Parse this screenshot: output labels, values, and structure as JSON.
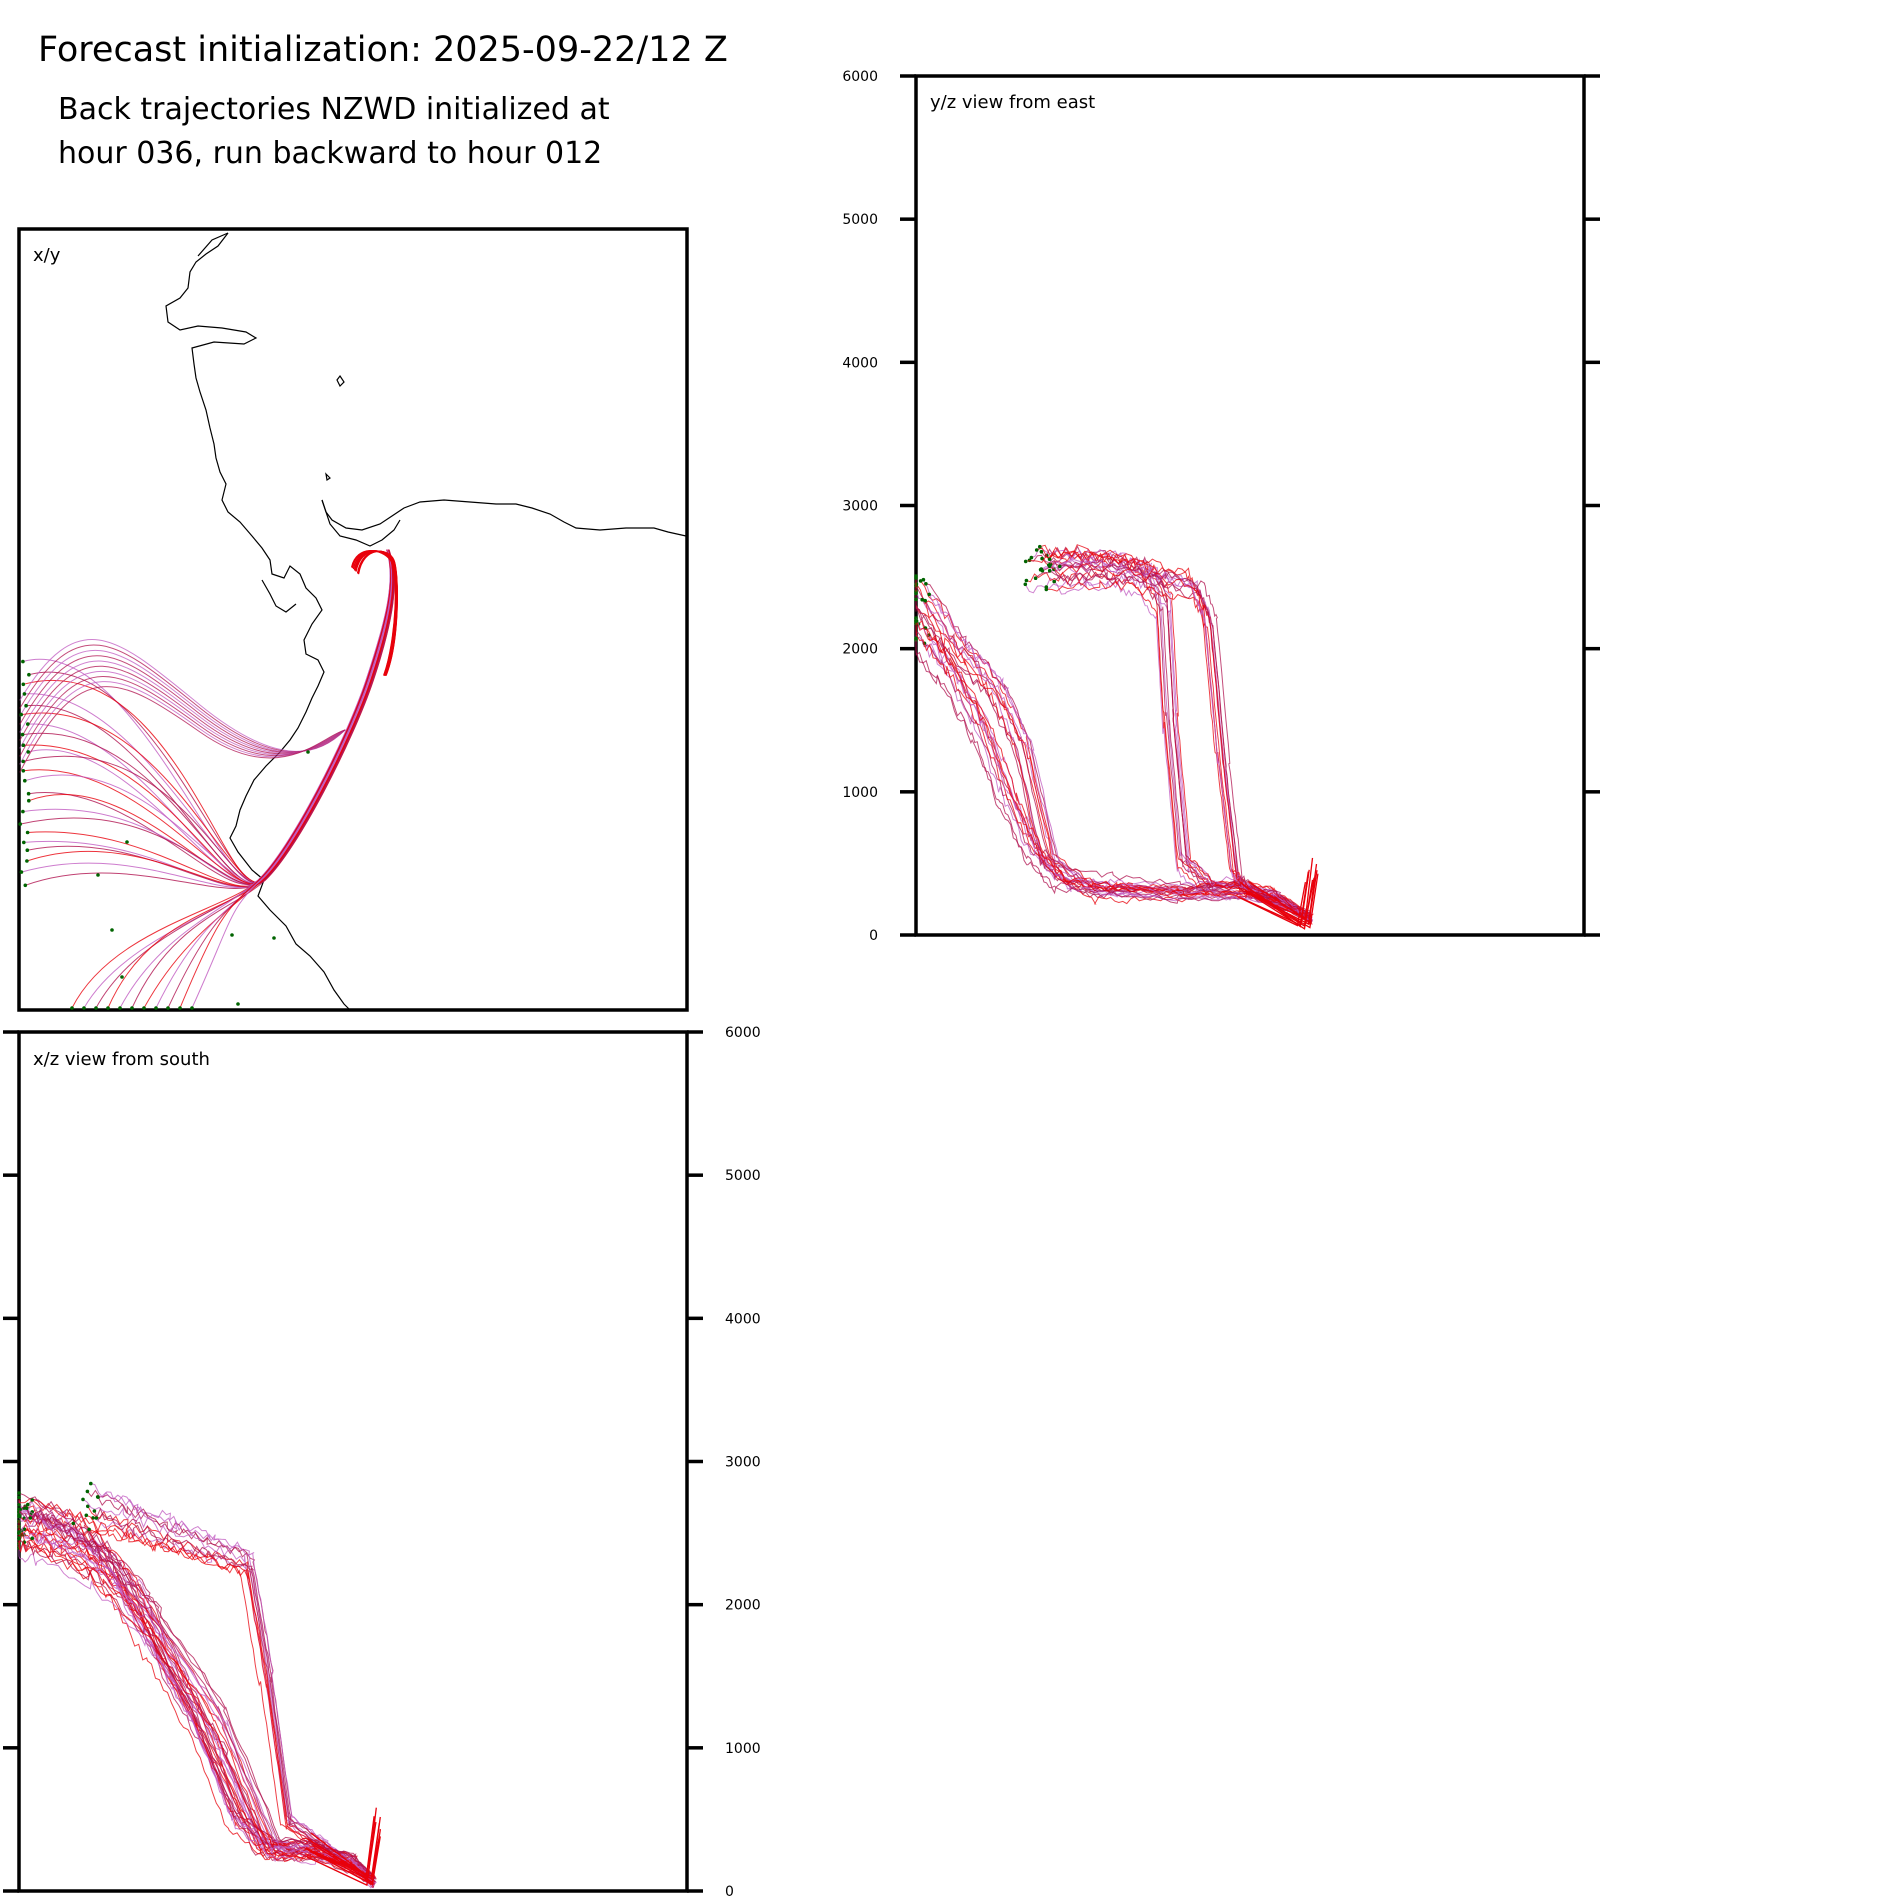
{
  "figure": {
    "title": "Forecast initialization: 2025-09-22/12 Z",
    "subtitle_lines": [
      "Back trajectories NZWD initialized at",
      "hour 036, run backward to hour 012"
    ]
  },
  "colors": {
    "trajectory_recent": "#e8000b",
    "trajectory_mid": "#b0124f",
    "trajectory_old": "#c05ac0",
    "endpoint_marker": "#006400",
    "coastline": "#000000",
    "frame": "#000000"
  },
  "chart_data": [
    {
      "type": "line",
      "panel_label": "x/y",
      "description_axes": "map plan view",
      "xlim": [
        0,
        1
      ],
      "ylim": [
        0,
        1
      ],
      "grid": false
    },
    {
      "type": "line",
      "panel_label": "y/z view from east",
      "ylabel": "",
      "ylim": [
        0,
        6000
      ],
      "yticks": [
        "0",
        "1000",
        "2000",
        "3000",
        "4000",
        "5000",
        "6000"
      ],
      "ytick_side": "left",
      "series": [
        {
          "x": [
            0.0,
            0.06,
            0.12,
            0.16,
            0.2,
            0.26,
            0.32,
            0.4,
            0.48,
            0.55,
            0.59
          ],
          "y": [
            2400,
            2000,
            1700,
            1300,
            500,
            300,
            300,
            300,
            350,
            200,
            100
          ]
        },
        {
          "x": [
            0.0,
            0.05,
            0.1,
            0.14,
            0.18,
            0.22,
            0.3,
            0.4,
            0.5,
            0.56,
            0.59
          ],
          "y": [
            2200,
            1900,
            1500,
            1000,
            600,
            400,
            350,
            300,
            300,
            200,
            150
          ]
        },
        {
          "x": [
            0.18,
            0.24,
            0.3,
            0.34,
            0.37,
            0.38,
            0.4,
            0.44,
            0.5,
            0.56,
            0.59
          ],
          "y": [
            2550,
            2550,
            2550,
            2500,
            2300,
            1500,
            500,
            320,
            300,
            200,
            120
          ]
        },
        {
          "x": [
            0.2,
            0.28,
            0.36,
            0.42,
            0.44,
            0.46,
            0.48,
            0.5,
            0.54,
            0.58,
            0.59
          ],
          "y": [
            2550,
            2560,
            2500,
            2420,
            2200,
            1200,
            400,
            320,
            280,
            150,
            100
          ]
        }
      ]
    },
    {
      "type": "line",
      "panel_label": "x/z view from south",
      "ylabel": "",
      "ylim": [
        0,
        6000
      ],
      "yticks": [
        "0",
        "1000",
        "2000",
        "3000",
        "4000",
        "5000",
        "6000"
      ],
      "ytick_side": "right",
      "series": [
        {
          "x": [
            0.0,
            0.06,
            0.12,
            0.18,
            0.24,
            0.3,
            0.36,
            0.4,
            0.44,
            0.5,
            0.53
          ],
          "y": [
            2550,
            2450,
            2300,
            2000,
            1400,
            900,
            300,
            250,
            250,
            150,
            50
          ]
        },
        {
          "x": [
            0.0,
            0.08,
            0.14,
            0.2,
            0.26,
            0.32,
            0.38,
            0.44,
            0.5,
            0.53
          ],
          "y": [
            2600,
            2500,
            2200,
            1700,
            1200,
            500,
            280,
            300,
            200,
            80
          ]
        },
        {
          "x": [
            0.1,
            0.16,
            0.22,
            0.28,
            0.34,
            0.37,
            0.4,
            0.46,
            0.52
          ],
          "y": [
            2700,
            2600,
            2500,
            2400,
            2300,
            1500,
            500,
            300,
            120
          ]
        },
        {
          "x": [
            0.0,
            0.04,
            0.12,
            0.2,
            0.3,
            0.38,
            0.45,
            0.5,
            0.53
          ],
          "y": [
            2500,
            2450,
            2250,
            1850,
            1200,
            300,
            260,
            200,
            60
          ]
        }
      ]
    }
  ]
}
